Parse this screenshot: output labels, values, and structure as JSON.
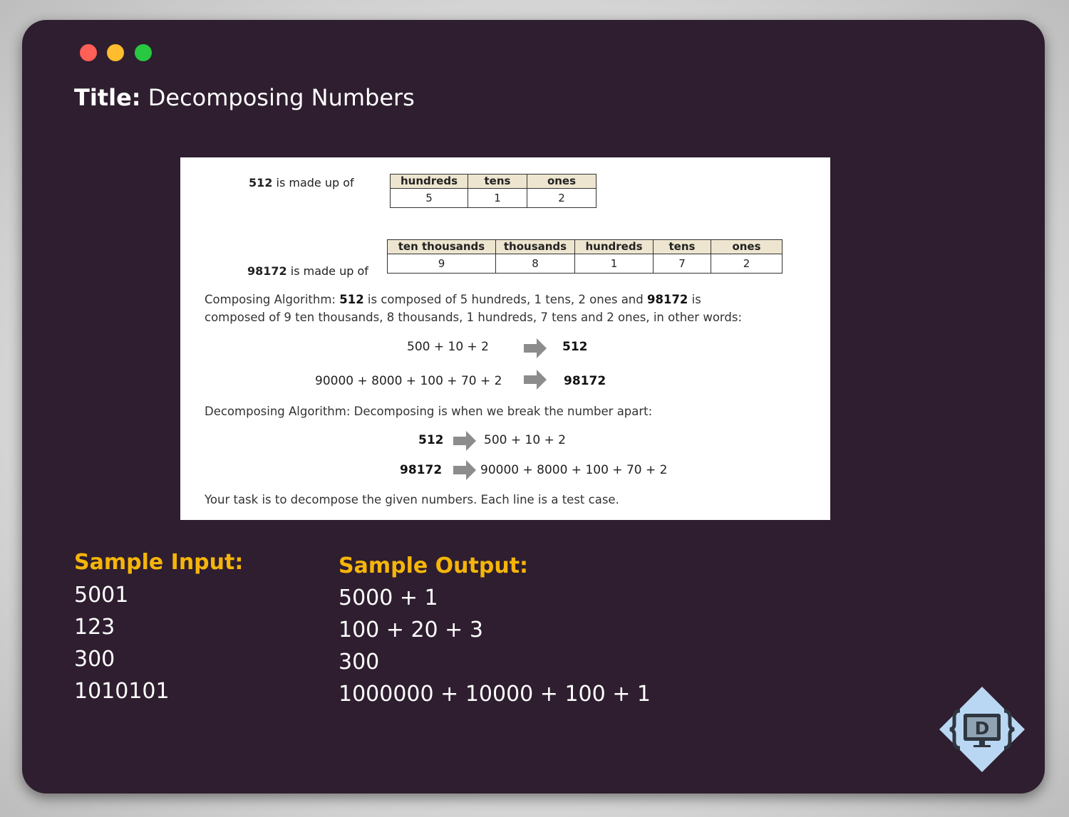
{
  "window": {
    "title_label": "Title:",
    "title_text": "Decomposing Numbers"
  },
  "problem": {
    "row1": {
      "number": "512",
      "suffix": "is made up of",
      "headers": [
        "hundreds",
        "tens",
        "ones"
      ],
      "digits": [
        "5",
        "1",
        "2"
      ]
    },
    "row2": {
      "number": "98172",
      "suffix": "is made up of",
      "headers": [
        "ten thousands",
        "thousands",
        "hundreds",
        "tens",
        "ones"
      ],
      "digits": [
        "9",
        "8",
        "1",
        "7",
        "2"
      ]
    },
    "composing": {
      "p1_a": "Composing Algorithm: ",
      "p1_b": "512",
      "p1_c": " is composed of 5 hundreds, 1 tens, 2 ones and ",
      "p1_d": "98172",
      "p1_e": " is",
      "p2": "composed of 9 ten thousands, 8 thousands, 1 hundreds, 7 tens and 2 ones, in other words:",
      "expr1": "500 + 10 + 2",
      "result1": "512",
      "expr2": "90000 + 8000 + 100 + 70 + 2",
      "result2": "98172"
    },
    "decomposing": {
      "text": "Decomposing Algorithm: Decomposing is when we break the number apart:",
      "num1": "512",
      "expr1": "500 + 10 + 2",
      "num2": "98172",
      "expr2": "90000 + 8000 + 100 + 70 + 2"
    },
    "task": "Your task is to decompose the given numbers. Each line is a test case."
  },
  "sample_input": {
    "heading": "Sample Input:",
    "lines": [
      "5001",
      "123",
      "300",
      "1010101"
    ]
  },
  "sample_output": {
    "heading": "Sample Output:",
    "lines": [
      "5000 + 1",
      "100 + 20 + 3",
      "300",
      "1000000 + 10000 + 100 + 1"
    ]
  },
  "colors": {
    "window_bg": "#2e1e2f",
    "heading_accent": "#f5b50a",
    "dot_red": "#ff5f57",
    "dot_yellow": "#febc2e",
    "dot_green": "#28c840",
    "table_header_bg": "#ede5cf",
    "arrow_gray": "#8c8c8c"
  },
  "icons": {
    "window_close": "red-dot-icon",
    "window_minimize": "yellow-dot-icon",
    "window_maximize": "green-dot-icon",
    "arrow": "right-arrow-icon",
    "brand": "curly-braces-monitor-logo-icon"
  }
}
